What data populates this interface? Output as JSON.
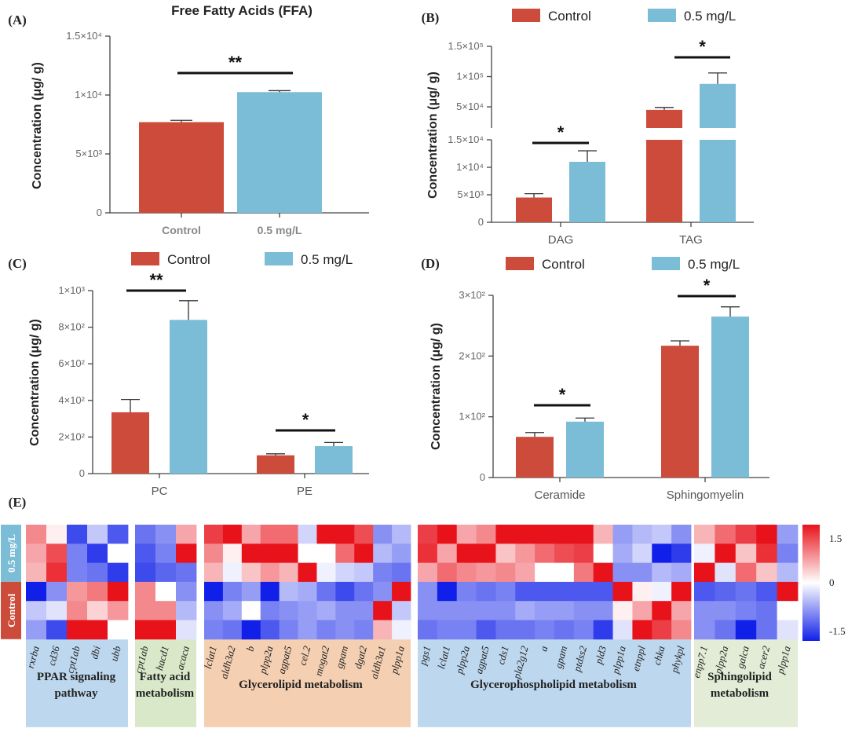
{
  "colors": {
    "control": "#cc4b3a",
    "treat": "#7bbcd6",
    "heat_high": "#e8121b",
    "heat_mid": "#ffffff",
    "heat_low": "#1020e8"
  },
  "chart_data": [
    {
      "panel": "(A)",
      "type": "bar",
      "title": "Free Fatty Acids (FFA)",
      "ylabel": "Concentration (μg/ g)",
      "ylim": [
        0,
        15000
      ],
      "yticks": [
        0,
        5000,
        10000,
        15000
      ],
      "ytick_labels": [
        "0",
        "5×10³",
        "1×10⁴",
        "1.5×10⁴"
      ],
      "categories": [
        "Control",
        "0.5 mg/L"
      ],
      "values": [
        7700,
        10250
      ],
      "errors": [
        150,
        120
      ],
      "significance": [
        {
          "label": "**",
          "between": [
            "Control",
            "0.5 mg/L"
          ]
        }
      ]
    },
    {
      "panel": "(B)",
      "type": "bar",
      "ylabel": "Concentration (μg/ g)",
      "legend": [
        "Control",
        "0.5 mg/L"
      ],
      "legend_position": "top",
      "broken_axis": true,
      "lower_ylim": [
        0,
        15000
      ],
      "lower_yticks": [
        0,
        5000,
        10000,
        15000
      ],
      "lower_ytick_labels": [
        "0",
        "5×10³",
        "1×10⁴",
        "1.5×10⁴"
      ],
      "upper_ylim": [
        15000,
        150000
      ],
      "upper_yticks": [
        50000,
        100000,
        150000
      ],
      "upper_ytick_labels": [
        "5×10⁴",
        "1×10⁵",
        "1.5×10⁵"
      ],
      "categories": [
        "DAG",
        "TAG"
      ],
      "series": [
        {
          "name": "Control",
          "values": [
            4500,
            45000
          ],
          "errors": [
            700,
            4000
          ]
        },
        {
          "name": "0.5 mg/L",
          "values": [
            11000,
            88000
          ],
          "errors": [
            2000,
            18000
          ]
        }
      ],
      "significance": [
        {
          "label": "*",
          "category": "DAG"
        },
        {
          "label": "*",
          "category": "TAG"
        }
      ]
    },
    {
      "panel": "(C)",
      "type": "bar",
      "ylabel": "Concentration (μg/ g)",
      "legend": [
        "Control",
        "0.5 mg/L"
      ],
      "legend_position": "top",
      "ylim": [
        0,
        1000
      ],
      "yticks": [
        0,
        200,
        400,
        600,
        800,
        1000
      ],
      "ytick_labels": [
        "0",
        "2×10²",
        "4×10²",
        "6×10²",
        "8×10²",
        "1×10³"
      ],
      "categories": [
        "PC",
        "PE"
      ],
      "series": [
        {
          "name": "Control",
          "values": [
            335,
            100
          ],
          "errors": [
            70,
            8
          ]
        },
        {
          "name": "0.5 mg/L",
          "values": [
            840,
            150
          ],
          "errors": [
            105,
            20
          ]
        }
      ],
      "significance": [
        {
          "label": "**",
          "category": "PC"
        },
        {
          "label": "*",
          "category": "PE"
        }
      ]
    },
    {
      "panel": "(D)",
      "type": "bar",
      "ylabel": "Concentration (μg/ g)",
      "legend": [
        "Control",
        "0.5 mg/L"
      ],
      "legend_position": "top",
      "ylim": [
        0,
        300
      ],
      "yticks": [
        0,
        100,
        200,
        300
      ],
      "ytick_labels": [
        "0",
        "1×10²",
        "2×10²",
        "3×10²"
      ],
      "categories": [
        "Ceramide",
        "Sphingomyelin"
      ],
      "series": [
        {
          "name": "Control",
          "values": [
            67,
            217
          ],
          "errors": [
            7,
            8
          ]
        },
        {
          "name": "0.5 mg/L",
          "values": [
            92,
            265
          ],
          "errors": [
            6,
            16
          ]
        }
      ],
      "significance": [
        {
          "label": "*",
          "category": "Ceramide"
        },
        {
          "label": "*",
          "category": "Sphingomyelin"
        }
      ]
    },
    {
      "panel": "(E)",
      "type": "heatmap",
      "row_groups": [
        "0.5 mg/L",
        "Control"
      ],
      "colorbar": {
        "min": -1.5,
        "max": 1.5,
        "tick_values": [
          1.5,
          0,
          -1.5
        ],
        "tick_labels": [
          "1.5",
          "0",
          "-1.5"
        ]
      },
      "blocks": [
        {
          "title": [
            "PPAR signaling",
            "pathway"
          ],
          "group_color": "#bdd7ee",
          "genes": [
            "rxrba",
            "cd36",
            "cpt1ab",
            "dbi",
            "ubb"
          ],
          "values": [
            [
              0.8,
              0.1,
              -1.3,
              -0.4,
              -1.2
            ],
            [
              0.6,
              1.2,
              -0.9,
              -1.4,
              0.0
            ],
            [
              0.5,
              1.4,
              -0.9,
              -1.0,
              -1.4
            ],
            [
              -1.6,
              -0.8,
              0.7,
              0.9,
              1.6
            ],
            [
              -0.4,
              -0.2,
              0.8,
              0.3,
              0.7
            ],
            [
              -0.7,
              -1.3,
              1.7,
              1.6,
              0.0
            ]
          ]
        },
        {
          "title": [
            "Fatty acid",
            "metabolism"
          ],
          "group_color": "#d8e8c8",
          "genes": [
            "cpt1ab",
            "hacd1",
            "acaca"
          ],
          "values": [
            [
              -1.0,
              -0.8,
              0.6
            ],
            [
              -1.2,
              -0.9,
              1.7
            ],
            [
              -1.3,
              -1.1,
              -1.0
            ],
            [
              0.8,
              0.0,
              -0.8
            ],
            [
              0.8,
              0.8,
              -0.5
            ],
            [
              1.7,
              1.7,
              -0.2
            ]
          ]
        },
        {
          "title": [
            "Glycerolipid  metabolism"
          ],
          "group_color": "#f4cfb1",
          "genes": [
            "lclat1",
            "aldh3a2",
            "b",
            "plpp2a",
            "agpat5",
            "cel.2",
            "mogat2",
            "gpam",
            "dgat2",
            "aldh3a1",
            "plpp1a"
          ],
          "values": [
            [
              1.3,
              1.6,
              0.6,
              1.0,
              1.0,
              -0.3,
              1.6,
              1.6,
              1.2,
              -0.8,
              -0.5
            ],
            [
              0.8,
              0.1,
              1.6,
              1.6,
              1.6,
              0.0,
              0.0,
              1.0,
              1.6,
              -0.5,
              -0.7
            ],
            [
              0.5,
              -0.1,
              0.4,
              0.7,
              0.5,
              1.6,
              -0.1,
              -0.3,
              -0.4,
              -0.9,
              -1.0
            ],
            [
              -1.6,
              -0.9,
              -0.7,
              -1.6,
              -0.5,
              -0.6,
              -1.0,
              -1.3,
              -1.0,
              -0.8,
              1.6
            ],
            [
              -0.8,
              -0.6,
              0.0,
              -0.9,
              -0.8,
              -0.7,
              -0.6,
              -0.8,
              -0.8,
              1.6,
              -0.4
            ],
            [
              -0.9,
              -1.0,
              -1.7,
              -1.2,
              -0.9,
              -0.7,
              -0.9,
              -0.8,
              -0.9,
              0.5,
              -0.1
            ]
          ]
        },
        {
          "title": [
            "Glycerophospholipid  metabolism"
          ],
          "group_color": "#bdd7ee",
          "genes": [
            "pgs1",
            "lclat1",
            "plpp2a",
            "agpat5",
            "cds1",
            "pla2g12",
            "a",
            "gpam",
            "ptdss2",
            "pld3",
            "plpp1a",
            "etnppl",
            "chka",
            "phykpl"
          ],
          "values": [
            [
              1.3,
              1.6,
              0.6,
              0.8,
              1.6,
              1.6,
              1.6,
              1.6,
              1.6,
              0.5,
              -0.7,
              -0.5,
              -0.4,
              -0.8
            ],
            [
              1.4,
              0.6,
              1.6,
              1.6,
              0.4,
              0.7,
              1.0,
              1.2,
              1.3,
              0.0,
              -0.6,
              -0.3,
              -1.6,
              -1.4
            ],
            [
              0.6,
              1.0,
              0.8,
              0.7,
              0.8,
              0.6,
              0.0,
              0.0,
              0.9,
              1.6,
              -0.8,
              -0.8,
              -0.5,
              -0.6
            ],
            [
              -0.8,
              -1.6,
              -0.9,
              -1.0,
              -0.9,
              -1.2,
              -1.2,
              -1.2,
              -1.2,
              -1.2,
              1.6,
              0.1,
              -0.1,
              1.6
            ],
            [
              -0.8,
              -0.8,
              -0.8,
              -0.8,
              -0.8,
              -0.6,
              -0.7,
              -0.7,
              -0.8,
              -0.8,
              0.1,
              0.6,
              1.6,
              0.6
            ],
            [
              -1.0,
              -0.9,
              -0.9,
              -1.2,
              -1.0,
              -1.0,
              -0.9,
              -1.0,
              -0.9,
              -1.4,
              -0.2,
              1.6,
              1.3,
              0.8
            ]
          ]
        },
        {
          "title": [
            "Sphingolipid",
            "metabolism"
          ],
          "group_color": "#e2ecd6",
          "genes": [
            "enpp7.1",
            "plpp2a",
            "galca",
            "acer2",
            "plpp1a"
          ],
          "values": [
            [
              0.5,
              1.0,
              1.3,
              1.6,
              -0.7
            ],
            [
              -0.1,
              1.6,
              0.4,
              1.4,
              -0.9
            ],
            [
              1.6,
              -0.2,
              1.0,
              0.4,
              -0.5
            ],
            [
              -1.2,
              -1.1,
              -1.0,
              -1.2,
              1.6
            ],
            [
              -0.8,
              -0.8,
              -0.9,
              -1.0,
              0.0
            ],
            [
              -0.8,
              -1.0,
              -1.6,
              -1.0,
              -0.2
            ]
          ]
        }
      ]
    }
  ]
}
